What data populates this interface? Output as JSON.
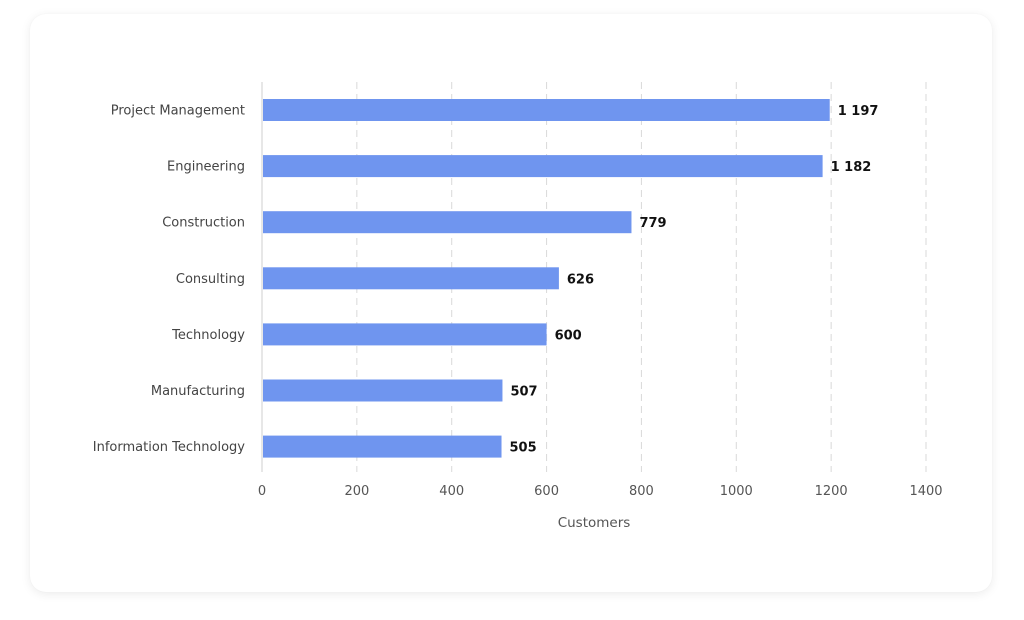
{
  "chart_data": {
    "type": "bar",
    "orientation": "horizontal",
    "categories": [
      "Project Management",
      "Engineering",
      "Construction",
      "Consulting",
      "Technology",
      "Manufacturing",
      "Information Technology"
    ],
    "values": [
      1197,
      1182,
      779,
      626,
      600,
      507,
      505
    ],
    "value_labels": [
      "1 197",
      "1 182",
      "779",
      "626",
      "600",
      "507",
      "505"
    ],
    "xlabel": "Customers",
    "ylabel": "",
    "xlim": [
      0,
      1400
    ],
    "xticks": [
      0,
      200,
      400,
      600,
      800,
      1000,
      1200,
      1400
    ],
    "grid": true,
    "bar_color": "#6f95ef"
  }
}
